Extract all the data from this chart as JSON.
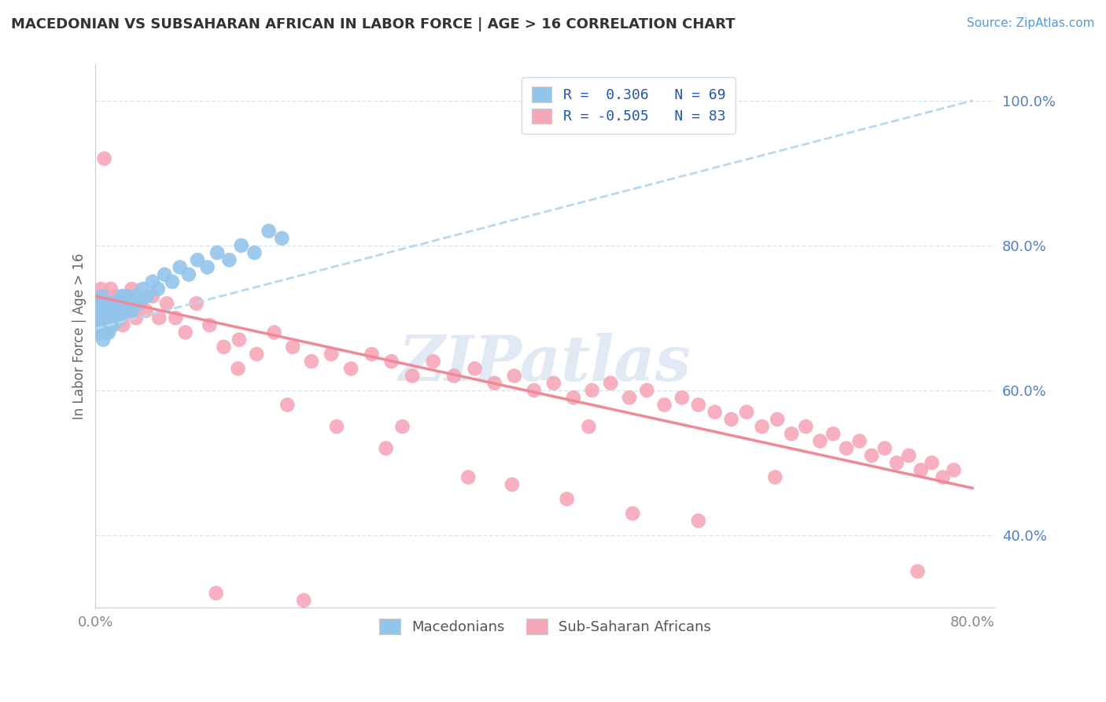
{
  "title": "MACEDONIAN VS SUBSAHARAN AFRICAN IN LABOR FORCE | AGE > 16 CORRELATION CHART",
  "source_text": "Source: ZipAtlas.com",
  "ylabel": "In Labor Force | Age > 16",
  "xlim": [
    0.0,
    0.82
  ],
  "ylim": [
    0.3,
    1.05
  ],
  "ytick_positions": [
    0.4,
    0.6,
    0.8,
    1.0
  ],
  "ytick_labels": [
    "40.0%",
    "60.0%",
    "80.0%",
    "100.0%"
  ],
  "xtick_positions": [
    0.0,
    0.8
  ],
  "xtick_labels": [
    "0.0%",
    "80.0%"
  ],
  "legend_line1": "R =  0.306   N = 69",
  "legend_line2": "R = -0.505   N = 83",
  "blue_color": "#92C5EC",
  "pink_color": "#F5A8B8",
  "trend_blue_color": "#B8D8F0",
  "trend_pink_color": "#F08898",
  "watermark": "ZIPatlas",
  "background_color": "#FFFFFF",
  "grid_color": "#D8E4F0",
  "blue_trend_x": [
    0.0,
    0.8
  ],
  "blue_trend_y": [
    0.685,
    1.0
  ],
  "pink_trend_x": [
    0.0,
    0.8
  ],
  "pink_trend_y": [
    0.73,
    0.465
  ],
  "blue_x": [
    0.001,
    0.002,
    0.002,
    0.003,
    0.003,
    0.003,
    0.004,
    0.004,
    0.004,
    0.005,
    0.005,
    0.005,
    0.006,
    0.006,
    0.006,
    0.007,
    0.007,
    0.007,
    0.008,
    0.008,
    0.008,
    0.009,
    0.009,
    0.01,
    0.01,
    0.01,
    0.011,
    0.011,
    0.012,
    0.012,
    0.013,
    0.013,
    0.014,
    0.014,
    0.015,
    0.015,
    0.016,
    0.016,
    0.017,
    0.018,
    0.019,
    0.02,
    0.021,
    0.022,
    0.023,
    0.024,
    0.025,
    0.027,
    0.029,
    0.031,
    0.033,
    0.036,
    0.039,
    0.043,
    0.047,
    0.052,
    0.057,
    0.063,
    0.07,
    0.077,
    0.085,
    0.093,
    0.102,
    0.111,
    0.122,
    0.133,
    0.145,
    0.158,
    0.17
  ],
  "blue_y": [
    0.69,
    0.71,
    0.68,
    0.7,
    0.72,
    0.69,
    0.68,
    0.71,
    0.7,
    0.69,
    0.72,
    0.7,
    0.68,
    0.71,
    0.73,
    0.67,
    0.7,
    0.69,
    0.68,
    0.72,
    0.7,
    0.71,
    0.69,
    0.7,
    0.68,
    0.72,
    0.71,
    0.69,
    0.7,
    0.68,
    0.72,
    0.7,
    0.71,
    0.69,
    0.7,
    0.72,
    0.71,
    0.69,
    0.7,
    0.72,
    0.7,
    0.71,
    0.72,
    0.7,
    0.71,
    0.73,
    0.72,
    0.71,
    0.73,
    0.72,
    0.71,
    0.73,
    0.72,
    0.74,
    0.73,
    0.75,
    0.74,
    0.76,
    0.75,
    0.77,
    0.76,
    0.78,
    0.77,
    0.79,
    0.78,
    0.8,
    0.79,
    0.82,
    0.81
  ],
  "pink_x": [
    0.003,
    0.005,
    0.007,
    0.008,
    0.009,
    0.01,
    0.011,
    0.012,
    0.013,
    0.014,
    0.015,
    0.016,
    0.018,
    0.02,
    0.022,
    0.024,
    0.027,
    0.03,
    0.033,
    0.037,
    0.041,
    0.046,
    0.052,
    0.058,
    0.065,
    0.073,
    0.082,
    0.092,
    0.104,
    0.117,
    0.131,
    0.147,
    0.163,
    0.18,
    0.197,
    0.215,
    0.233,
    0.252,
    0.27,
    0.289,
    0.308,
    0.327,
    0.346,
    0.364,
    0.382,
    0.4,
    0.418,
    0.436,
    0.453,
    0.47,
    0.487,
    0.503,
    0.519,
    0.535,
    0.55,
    0.565,
    0.58,
    0.594,
    0.608,
    0.622,
    0.635,
    0.648,
    0.661,
    0.673,
    0.685,
    0.697,
    0.708,
    0.72,
    0.731,
    0.742,
    0.753,
    0.763,
    0.773,
    0.783,
    0.13,
    0.175,
    0.22,
    0.265,
    0.34,
    0.38,
    0.43,
    0.49,
    0.55
  ],
  "pink_y": [
    0.72,
    0.74,
    0.7,
    0.73,
    0.71,
    0.72,
    0.7,
    0.73,
    0.71,
    0.74,
    0.72,
    0.7,
    0.73,
    0.71,
    0.72,
    0.7,
    0.73,
    0.71,
    0.74,
    0.7,
    0.72,
    0.71,
    0.73,
    0.7,
    0.72,
    0.7,
    0.68,
    0.72,
    0.69,
    0.66,
    0.67,
    0.65,
    0.68,
    0.66,
    0.64,
    0.65,
    0.63,
    0.65,
    0.64,
    0.62,
    0.64,
    0.62,
    0.63,
    0.61,
    0.62,
    0.6,
    0.61,
    0.59,
    0.6,
    0.61,
    0.59,
    0.6,
    0.58,
    0.59,
    0.58,
    0.57,
    0.56,
    0.57,
    0.55,
    0.56,
    0.54,
    0.55,
    0.53,
    0.54,
    0.52,
    0.53,
    0.51,
    0.52,
    0.5,
    0.51,
    0.49,
    0.5,
    0.48,
    0.49,
    0.63,
    0.58,
    0.55,
    0.52,
    0.48,
    0.47,
    0.45,
    0.43,
    0.42
  ],
  "pink_outliers_x": [
    0.008,
    0.025,
    0.11,
    0.19,
    0.28,
    0.45,
    0.62,
    0.75
  ],
  "pink_outliers_y": [
    0.92,
    0.69,
    0.32,
    0.31,
    0.55,
    0.55,
    0.48,
    0.35
  ]
}
